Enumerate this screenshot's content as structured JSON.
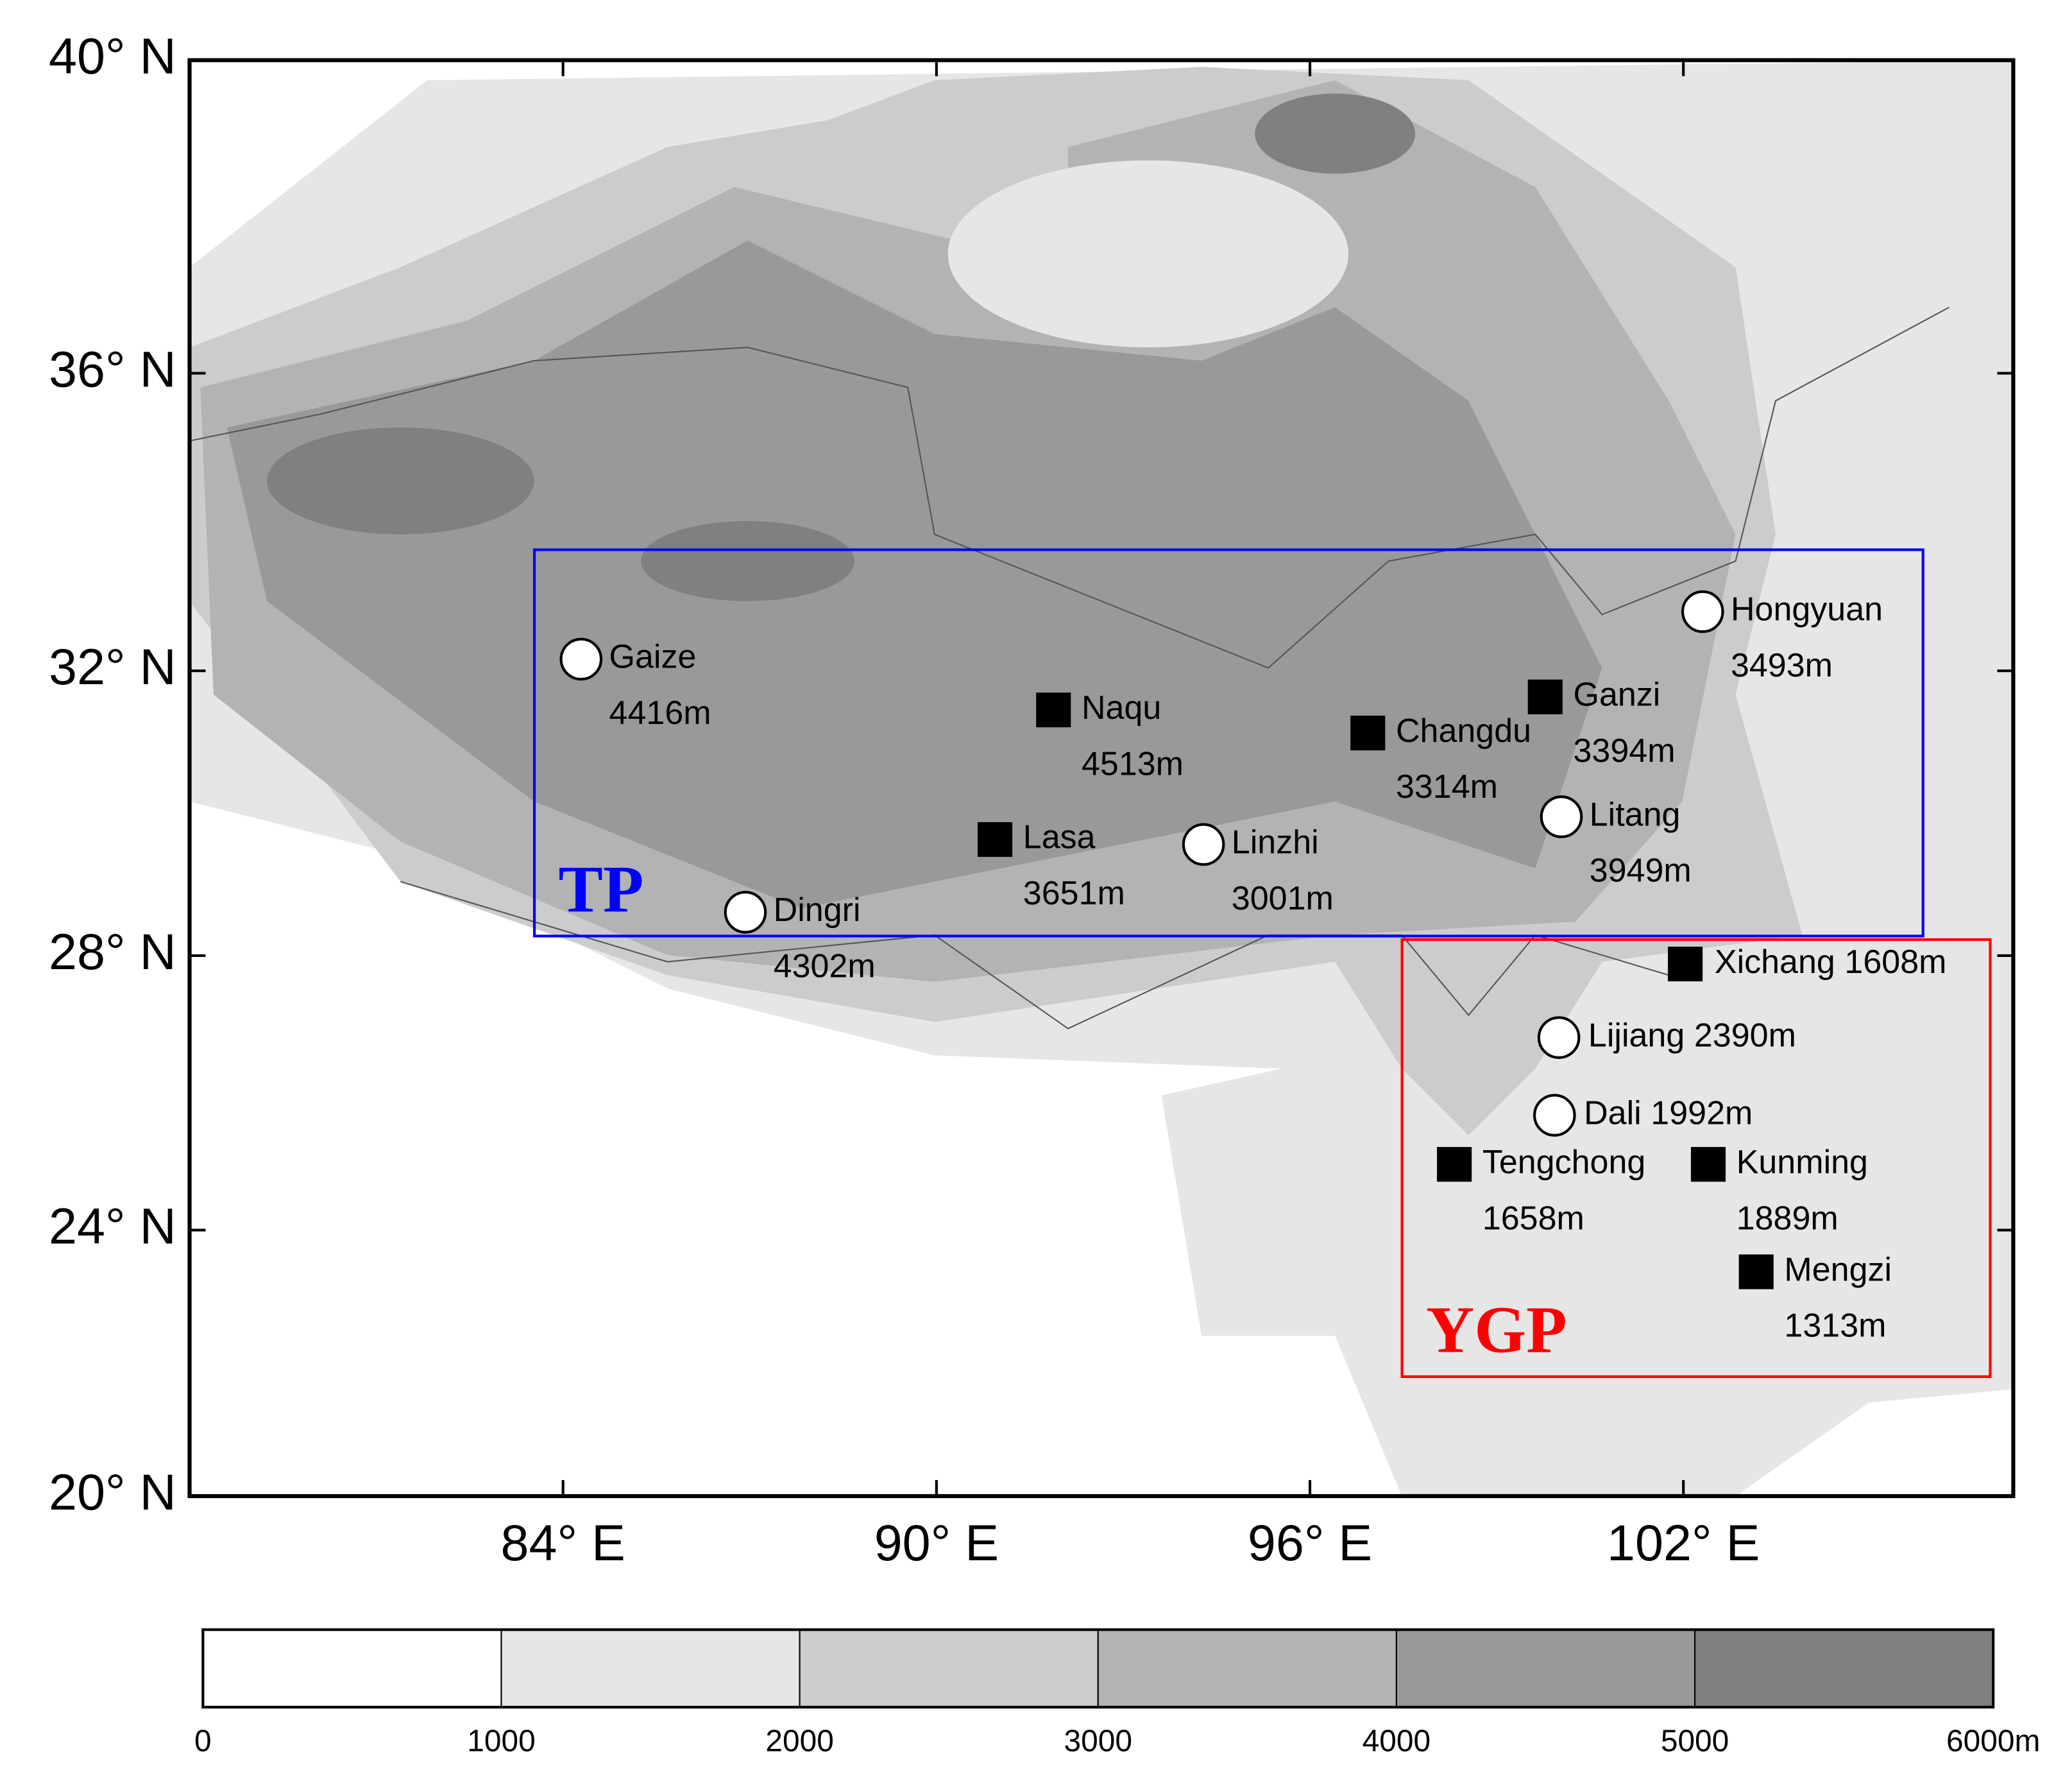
{
  "chart_data": {
    "type": "map",
    "projection": "mercator",
    "xlim": [
      78,
      107.3
    ],
    "ylim": [
      20,
      40
    ],
    "xticks": [
      {
        "value": 84,
        "label": "84° E"
      },
      {
        "value": 90,
        "label": "90° E"
      },
      {
        "value": 96,
        "label": "96° E"
      },
      {
        "value": 102,
        "label": "102° E"
      }
    ],
    "yticks": [
      {
        "value": 20,
        "label": "20° N"
      },
      {
        "value": 24,
        "label": "24° N"
      },
      {
        "value": 28,
        "label": "28° N"
      },
      {
        "value": 32,
        "label": "32° N"
      },
      {
        "value": 36,
        "label": "36° N"
      },
      {
        "value": 40,
        "label": "40° N"
      }
    ],
    "stations": [
      {
        "name": "Gaize",
        "elevation": "4416m",
        "lon": 84.29,
        "lat": 32.16,
        "marker": "circle"
      },
      {
        "name": "Naqu",
        "elevation": "4513m",
        "lon": 91.88,
        "lat": 31.46,
        "marker": "square"
      },
      {
        "name": "Changdu",
        "elevation": "3314m",
        "lon": 96.93,
        "lat": 31.14,
        "marker": "square"
      },
      {
        "name": "Ganzi",
        "elevation": "3394m",
        "lon": 99.78,
        "lat": 31.64,
        "marker": "square"
      },
      {
        "name": "Hongyuan",
        "elevation": "3493m",
        "lon": 102.31,
        "lat": 32.81,
        "marker": "circle"
      },
      {
        "name": "Litang",
        "elevation": "3949m",
        "lon": 100.04,
        "lat": 29.97,
        "marker": "circle"
      },
      {
        "name": "Lasa",
        "elevation": "3651m",
        "lon": 90.94,
        "lat": 29.65,
        "marker": "square"
      },
      {
        "name": "Linzhi",
        "elevation": "3001m",
        "lon": 94.29,
        "lat": 29.58,
        "marker": "circle"
      },
      {
        "name": "Dingri",
        "elevation": "4302m",
        "lon": 86.93,
        "lat": 28.62,
        "marker": "circle"
      },
      {
        "name": "Xichang",
        "elevation": "1608m",
        "lon": 102.03,
        "lat": 27.88,
        "marker": "square"
      },
      {
        "name": "Lijiang",
        "elevation": "2390m",
        "lon": 100.0,
        "lat": 26.82,
        "marker": "circle"
      },
      {
        "name": "Dali",
        "elevation": "1992m",
        "lon": 99.93,
        "lat": 25.69,
        "marker": "circle"
      },
      {
        "name": "Tengchong",
        "elevation": "1658m",
        "lon": 98.32,
        "lat": 24.97,
        "marker": "square"
      },
      {
        "name": "Kunming",
        "elevation": "1889m",
        "lon": 102.4,
        "lat": 24.97,
        "marker": "square"
      },
      {
        "name": "Mengzi",
        "elevation": "1313m",
        "lon": 103.17,
        "lat": 23.38,
        "marker": "square"
      }
    ],
    "regions": [
      {
        "name": "TP",
        "color": "#0000ff",
        "lon": [
          83.54,
          105.85
        ],
        "lat": [
          28.28,
          33.65
        ]
      },
      {
        "name": "YGP",
        "color": "#ff0000",
        "lon": [
          97.48,
          106.93
        ],
        "lat": [
          21.81,
          28.23
        ]
      }
    ],
    "colorbar": {
      "ticks": [
        0,
        1000,
        2000,
        3000,
        4000,
        5000,
        {
          "value": 6000,
          "label": "6000m"
        }
      ],
      "colors": [
        "#ffffff",
        "#e6e6e6",
        "#cccccc",
        "#b3b3b3",
        "#999999",
        "#808080"
      ]
    }
  }
}
